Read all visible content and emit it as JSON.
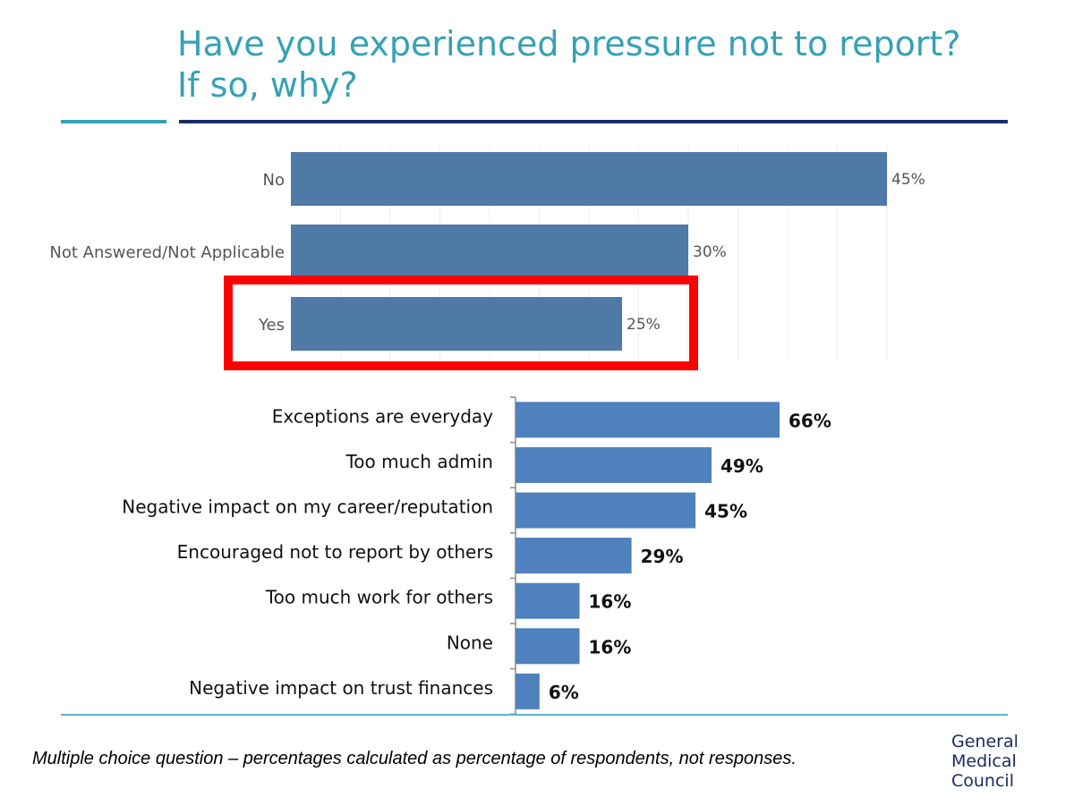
{
  "slide": {
    "title_line1": "Have you experienced pressure not to report?",
    "title_line2": "If so, why?",
    "footnote": "Multiple choice question – percentages calculated as percentage of respondents, not responses.",
    "logo_lines": [
      "General",
      "Medical",
      "Council"
    ]
  },
  "colors": {
    "title": "#36a1b5",
    "rule_accent": "#36a1b5",
    "rule_dark": "#1b2c63",
    "top_bar": "#4f79a7",
    "bottom_bar": "#4e81bd",
    "highlight_box": "#ff0000",
    "logo": "#1b2c63"
  },
  "chart_data": [
    {
      "type": "bar",
      "orientation": "horizontal",
      "categories": [
        "No",
        "Not Answered/Not Applicable",
        "Yes"
      ],
      "values": [
        45,
        30,
        25
      ],
      "labels": [
        "45%",
        "30%",
        "25%"
      ],
      "xlim": [
        0,
        45
      ],
      "grid": true,
      "highlighted_category": "Yes"
    },
    {
      "type": "bar",
      "orientation": "horizontal",
      "categories": [
        "Exceptions are everyday",
        "Too much admin",
        "Negative impact on my career/reputation",
        "Encouraged not to report by others",
        "Too much work for others",
        "None",
        "Negative impact on trust finances"
      ],
      "values": [
        66,
        49,
        45,
        29,
        16,
        16,
        6
      ],
      "labels": [
        "66%",
        "49%",
        "45%",
        "29%",
        "16%",
        "16%",
        "6%"
      ],
      "xlim": [
        0,
        66
      ],
      "grid": false
    }
  ]
}
